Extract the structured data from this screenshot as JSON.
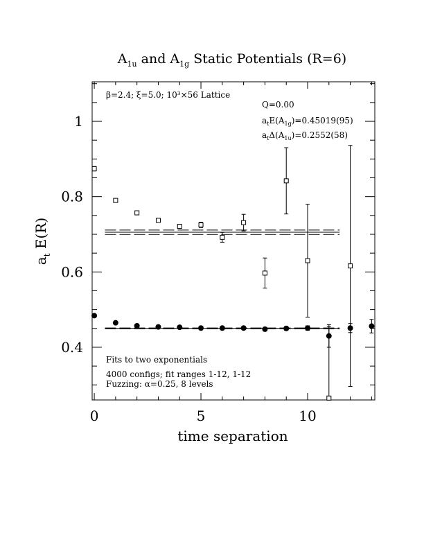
{
  "chart_data": {
    "type": "scatter",
    "title": {
      "pre": "A",
      "sub1": "1u",
      "mid": " and A",
      "sub2": "1g",
      "post": " Static Potentials (R=6)"
    },
    "xlabel": "time separation",
    "ylabel": {
      "main": "a",
      "sub": "t",
      "rest": " E(R)"
    },
    "xlim": [
      -0.1,
      13.15
    ],
    "ylim": [
      0.26,
      1.105
    ],
    "x_ticks": [
      0,
      5,
      10
    ],
    "x_tick_labels": [
      "0",
      "5",
      "10"
    ],
    "y_ticks": [
      0.4,
      0.6,
      0.8,
      1.0
    ],
    "y_tick_labels": [
      "0.4",
      "0.6",
      "0.8",
      "1"
    ],
    "grid": false,
    "annotations": {
      "lattice": "β=2.4; ξ=5.0; 10³×56 Lattice",
      "q": "Q=0.00",
      "energy": {
        "pre": "a",
        "sub1": "t",
        "mid": "E(A",
        "sub2": "1g",
        "post": ")=0.45019(95)"
      },
      "gap": {
        "pre": "a",
        "sub1": "t",
        "mid": "Δ(A",
        "sub2": "1u",
        "post": ")=0.2552(58)"
      },
      "fits": "Fits to two exponentials",
      "configs": "4000 configs; fit ranges 1-12, 1-12",
      "fuzzing": "Fuzzing: α=0.25, 8 levels"
    },
    "series": [
      {
        "name": "A1g",
        "marker": "filled-circle",
        "points": [
          {
            "x": 0,
            "y": 0.484,
            "err": 0.002
          },
          {
            "x": 1,
            "y": 0.465,
            "err": 0.002
          },
          {
            "x": 2,
            "y": 0.457,
            "err": 0.002
          },
          {
            "x": 3,
            "y": 0.454,
            "err": 0.002
          },
          {
            "x": 4,
            "y": 0.453,
            "err": 0.003
          },
          {
            "x": 5,
            "y": 0.451,
            "err": 0.003
          },
          {
            "x": 6,
            "y": 0.451,
            "err": 0.003
          },
          {
            "x": 7,
            "y": 0.451,
            "err": 0.004
          },
          {
            "x": 8,
            "y": 0.448,
            "err": 0.005
          },
          {
            "x": 9,
            "y": 0.45,
            "err": 0.005
          },
          {
            "x": 10,
            "y": 0.451,
            "err": 0.006
          },
          {
            "x": 11,
            "y": 0.43,
            "err": 0.03
          },
          {
            "x": 12,
            "y": 0.451,
            "err": 0.012
          },
          {
            "x": 13,
            "y": 0.456,
            "err": 0.018
          }
        ]
      },
      {
        "name": "A1u",
        "marker": "open-square",
        "points": [
          {
            "x": 0,
            "y": 0.874,
            "err": 0.006
          },
          {
            "x": 1,
            "y": 0.79,
            "err": 0.004
          },
          {
            "x": 2,
            "y": 0.757,
            "err": 0.004
          },
          {
            "x": 3,
            "y": 0.737,
            "err": 0.004
          },
          {
            "x": 4,
            "y": 0.721,
            "err": 0.005
          },
          {
            "x": 5,
            "y": 0.725,
            "err": 0.007
          },
          {
            "x": 6,
            "y": 0.692,
            "err": 0.013
          },
          {
            "x": 7,
            "y": 0.731,
            "err": 0.022
          },
          {
            "x": 8,
            "y": 0.597,
            "err": 0.04
          },
          {
            "x": 9,
            "y": 0.842,
            "err": 0.088
          },
          {
            "x": 10,
            "y": 0.63,
            "err": 0.15
          },
          {
            "x": 11,
            "y": 0.265,
            "err": 0.19
          },
          {
            "x": 12,
            "y": 0.616,
            "err": 0.32
          }
        ]
      }
    ],
    "fit_lines": [
      {
        "series": "A1g",
        "x_start": 0.5,
        "x_end": 11.5,
        "center": 0.4502,
        "band": 0.00095
      },
      {
        "series": "A1u",
        "x_start": 0.5,
        "x_end": 11.5,
        "center": 0.7054,
        "band": 0.0058
      }
    ]
  }
}
